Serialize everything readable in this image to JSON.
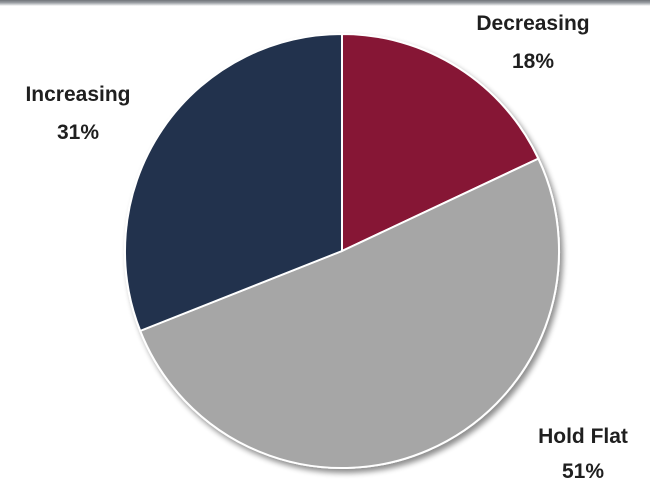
{
  "chart_data": {
    "type": "pie",
    "title": "",
    "slices": [
      {
        "label": "Decreasing",
        "value": 18,
        "value_label": "18%",
        "color": "#861734"
      },
      {
        "label": "Hold Flat",
        "value": 51,
        "value_label": "51%",
        "color": "#a6a6a6"
      },
      {
        "label": "Increasing",
        "value": 31,
        "value_label": "31%",
        "color": "#22334d"
      }
    ],
    "start_angle": "12 o'clock",
    "direction": "clockwise",
    "legend": "none",
    "labels": "outside slices"
  }
}
